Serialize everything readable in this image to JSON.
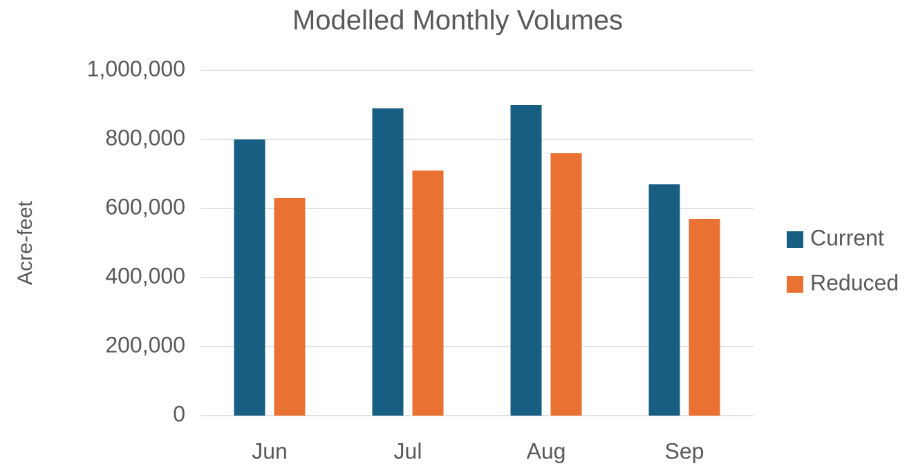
{
  "chart_data": {
    "type": "bar",
    "title": "Modelled Monthly Volumes",
    "y_label": "Acre-feet",
    "categories": [
      "Jun",
      "Jul",
      "Aug",
      "Sep"
    ],
    "series": [
      {
        "name": "Current",
        "color": "#175e82",
        "values": [
          800000,
          890000,
          900000,
          670000
        ]
      },
      {
        "name": "Reduced",
        "color": "#e97132",
        "values": [
          630000,
          710000,
          760000,
          570000
        ]
      }
    ],
    "ylim": [
      0,
      1000000
    ],
    "yticks": [
      0,
      {
        "value": 200000,
        "label": "200,000"
      },
      {
        "value": 400000,
        "label": "400,000"
      },
      {
        "value": 600000,
        "label": "600,000"
      },
      {
        "value": 800000,
        "label": "800,000"
      },
      {
        "value": 1000000,
        "label": "1,000,000"
      }
    ],
    "grid": true,
    "legend": "right"
  }
}
